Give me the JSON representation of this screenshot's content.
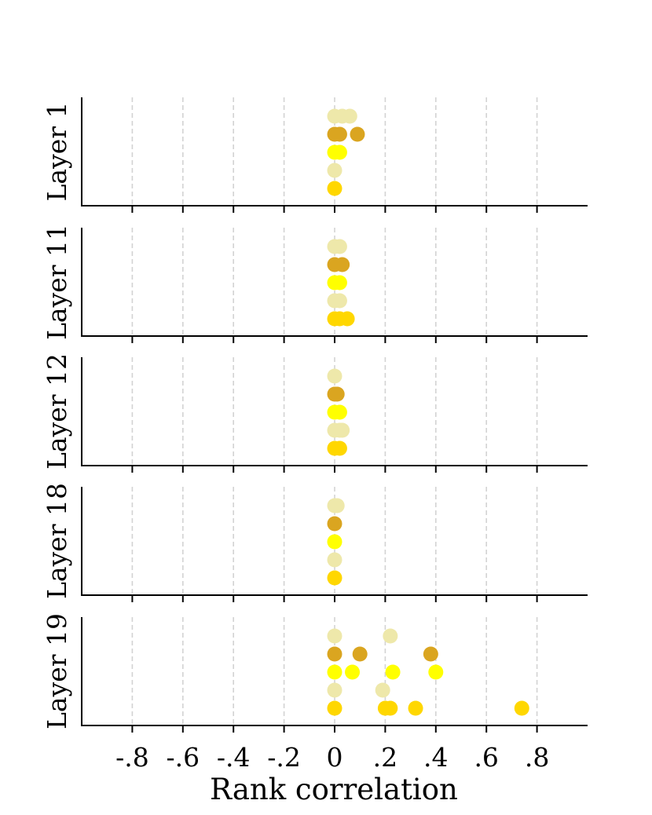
{
  "chart_data": {
    "type": "scatter",
    "xlabel": "Rank correlation",
    "xlim": [
      -1.0,
      1.0
    ],
    "xticks": [
      -0.8,
      -0.6,
      -0.4,
      -0.2,
      0,
      0.2,
      0.4,
      0.6,
      0.8
    ],
    "xtick_labels": [
      "-.8",
      "-.6",
      "-.4",
      "-.2",
      "0",
      ".2",
      ".4",
      ".6",
      ".8"
    ],
    "grid": "vertical dashed at x ticks",
    "row_colors": [
      "#eee8aa",
      "#daa520",
      "#ffff00",
      "#eee8aa",
      "#ffd700"
    ],
    "panels": [
      {
        "label": "Layer 1",
        "rows": [
          [
            0.0,
            0.03,
            0.06
          ],
          [
            0.0,
            0.02,
            0.09
          ],
          [
            0.0,
            0.02
          ],
          [
            0.0
          ],
          [
            0.0
          ]
        ]
      },
      {
        "label": "Layer 11",
        "rows": [
          [
            0.0,
            0.02
          ],
          [
            0.0,
            0.03
          ],
          [
            0.0,
            0.02
          ],
          [
            0.0,
            0.02
          ],
          [
            0.0,
            0.02,
            0.05
          ]
        ]
      },
      {
        "label": "Layer 12",
        "rows": [
          [
            0.0
          ],
          [
            0.0,
            0.01
          ],
          [
            0.0,
            0.02
          ],
          [
            0.0,
            0.02,
            0.03
          ],
          [
            0.0,
            0.02
          ]
        ]
      },
      {
        "label": "Layer 18",
        "rows": [
          [
            0.0,
            0.01
          ],
          [
            0.0
          ],
          [
            0.0
          ],
          [
            0.0
          ],
          [
            0.0
          ]
        ]
      },
      {
        "label": "Layer 19",
        "rows": [
          [
            0.0,
            0.22
          ],
          [
            0.0,
            0.1,
            0.38
          ],
          [
            0.0,
            0.07,
            0.23,
            0.4
          ],
          [
            0.0,
            0.19
          ],
          [
            0.0,
            0.2,
            0.22,
            0.32,
            0.74
          ]
        ]
      }
    ]
  }
}
